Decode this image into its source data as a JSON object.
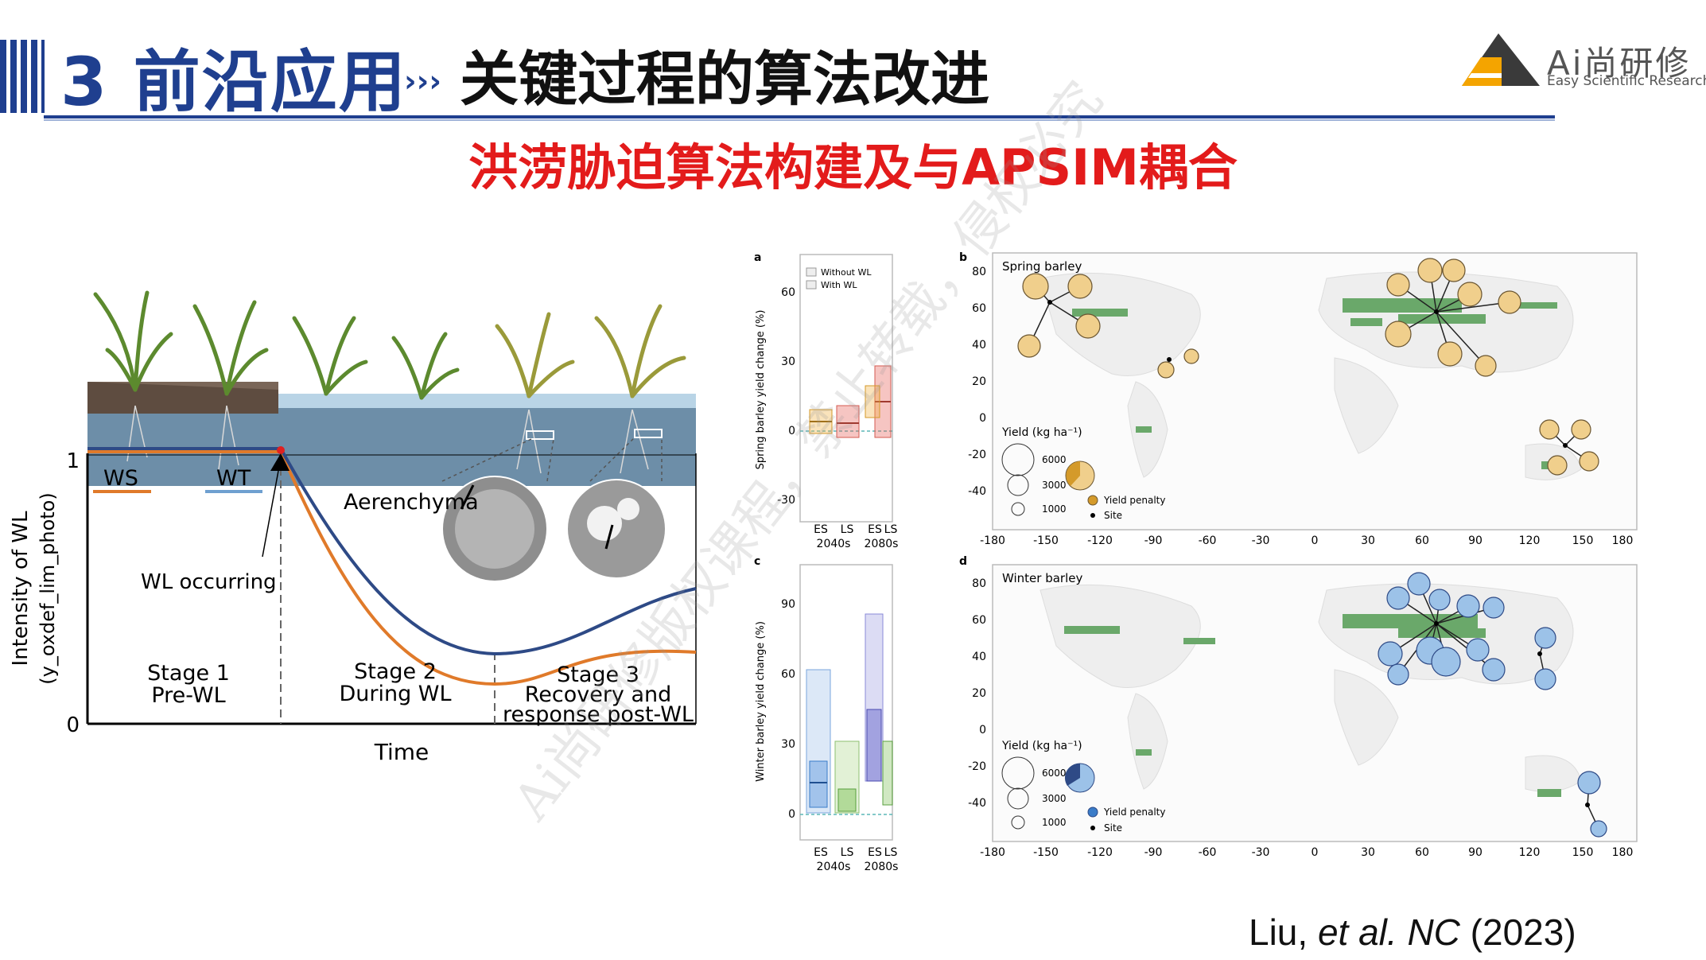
{
  "header": {
    "title_num": "3 前沿应用",
    "chevrons": "›››",
    "title_sub": "关键过程的算法改进",
    "logo_name": "Ai尚研修",
    "logo_tag": "Easy Scientific Research"
  },
  "subtitle": "洪涝胁迫算法构建及与APSIM耦合",
  "watermark": "Ai尚研修版权课程，禁止转载，侵权必究",
  "left_figure": {
    "y_label_1": "Intensity of WL",
    "y_label_2": "(y_oxdef_lim_photo)",
    "y_tick_1": "1",
    "y_tick_0": "0",
    "x_label": "Time",
    "legend_ws": "WS",
    "legend_wt": "WT",
    "aerenchyma": "Aerenchyma",
    "wl_occurring": "WL occurring",
    "stage1_a": "Stage 1",
    "stage1_b": "Pre-WL",
    "stage2_a": "Stage 2",
    "stage2_b": "During WL",
    "stage3_a": "Stage 3",
    "stage3_b": "Recovery and",
    "stage3_c": "response post-WL",
    "colors": {
      "ws": "#e07a2a",
      "wt": "#2e4a86",
      "water": "#6d8ea8",
      "soil": "#7a6658"
    }
  },
  "panel_a": {
    "letter": "a",
    "y_label": "Spring barley yield change (%)",
    "ticks": [
      "60",
      "30",
      "0",
      "-30"
    ],
    "legend_1": "Without WL",
    "legend_2": "With WL",
    "cats_1": [
      "ES",
      "LS"
    ],
    "cats_2": [
      "ES",
      "LS"
    ],
    "period_1": "2040s",
    "period_2": "2080s"
  },
  "panel_c": {
    "letter": "c",
    "y_label": "Winter barley yield change (%)",
    "ticks": [
      "90",
      "60",
      "30",
      "0"
    ],
    "cats_1": [
      "ES",
      "LS"
    ],
    "cats_2": [
      "ES",
      "LS"
    ],
    "period_1": "2040s",
    "period_2": "2080s"
  },
  "panel_b": {
    "letter": "b",
    "title": "Spring barley",
    "y_ticks": [
      "80",
      "60",
      "40",
      "20",
      "0",
      "-20",
      "-40"
    ],
    "x_ticks": [
      "-180",
      "-150",
      "-120",
      "-90",
      "-60",
      "-30",
      "0",
      "30",
      "60",
      "90",
      "120",
      "150",
      "180"
    ],
    "legend_title": "Yield (kg ha⁻¹)",
    "sizes": [
      "6000",
      "3000",
      "1000"
    ],
    "penalty": "Yield penalty",
    "site": "Site",
    "color": "#f0cf8c"
  },
  "panel_d": {
    "letter": "d",
    "title": "Winter barley",
    "y_ticks": [
      "80",
      "60",
      "40",
      "20",
      "0",
      "-20",
      "-40"
    ],
    "x_ticks": [
      "-180",
      "-150",
      "-120",
      "-90",
      "-60",
      "-30",
      "0",
      "30",
      "60",
      "90",
      "120",
      "150",
      "180"
    ],
    "legend_title": "Yield (kg ha⁻¹)",
    "sizes": [
      "6000",
      "3000",
      "1000"
    ],
    "penalty": "Yield penalty",
    "site": "Site",
    "color": "#9cc2e8"
  },
  "citation": {
    "author": "Liu, ",
    "etal": "et al. NC",
    "year": " (2023)"
  }
}
